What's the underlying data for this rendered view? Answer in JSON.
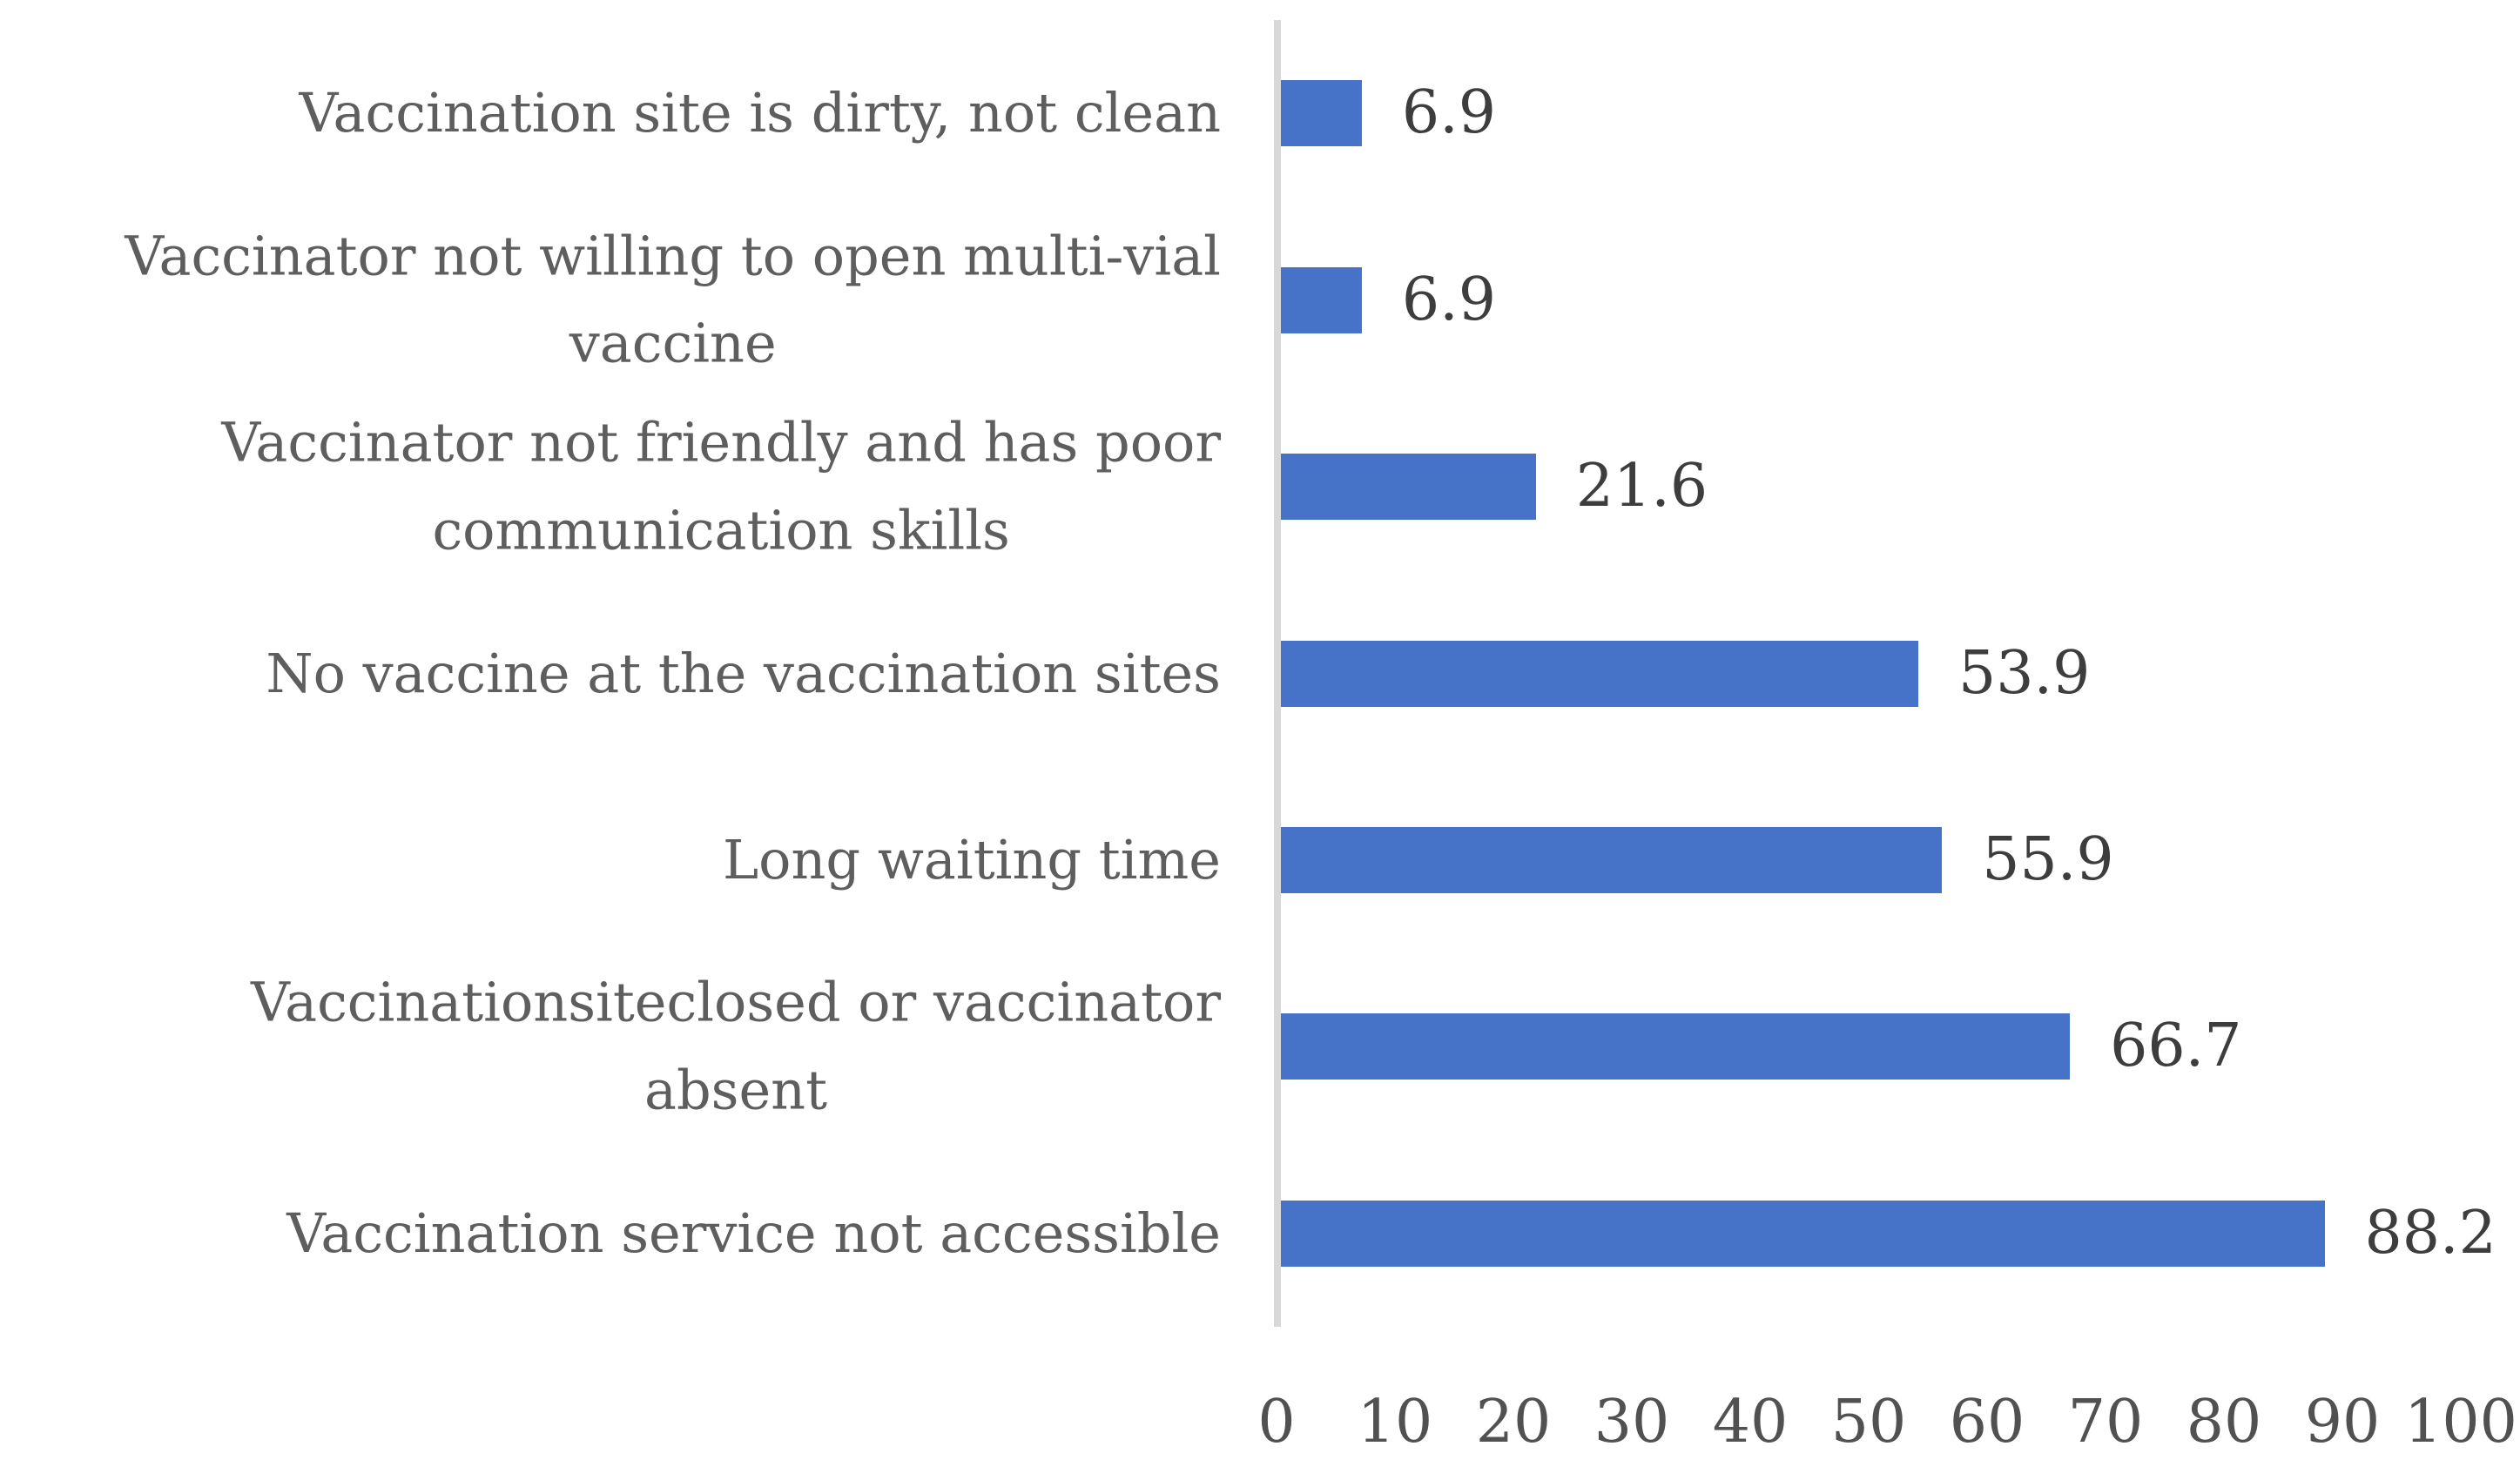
{
  "chart_data": {
    "type": "bar",
    "orientation": "horizontal",
    "title": "",
    "xlabel": "",
    "ylabel": "",
    "xlim": [
      0,
      100
    ],
    "x_ticks": [
      0,
      10,
      20,
      30,
      40,
      50,
      60,
      70,
      80,
      90,
      100
    ],
    "grid": false,
    "legend": null,
    "bar_color": "#4673C7",
    "axis_line_color": "#D8D8D8",
    "category_color": "#5E5E5E",
    "value_color": "#3D3D3D",
    "tick_color": "#515151",
    "categories": [
      "Vaccination site is dirty, not clean",
      "Vaccinator not willing to open multi-vial vaccine",
      "Vaccinator not friendly and has poor communication skills",
      "No vaccine at the vaccination sites",
      "Long waiting time",
      "Vaccinationsiteclosed or vaccinator absent",
      "Vaccination service not accessible"
    ],
    "category_lines": [
      [
        "Vaccination site is dirty, not clean"
      ],
      [
        "Vaccinator not willing to open multi-vial",
        "vaccine"
      ],
      [
        "Vaccinator not friendly and has poor",
        "communication skills"
      ],
      [
        "No vaccine at the vaccination sites"
      ],
      [
        "Long waiting time"
      ],
      [
        "Vaccinationsiteclosed or vaccinator",
        "absent"
      ],
      [
        "Vaccination service not accessible"
      ]
    ],
    "values": [
      6.9,
      6.9,
      21.6,
      53.9,
      55.9,
      66.7,
      88.2
    ],
    "value_labels": [
      "6.9",
      "6.9",
      "21.6",
      "53.9",
      "55.9",
      "66.7",
      "88.2"
    ]
  }
}
